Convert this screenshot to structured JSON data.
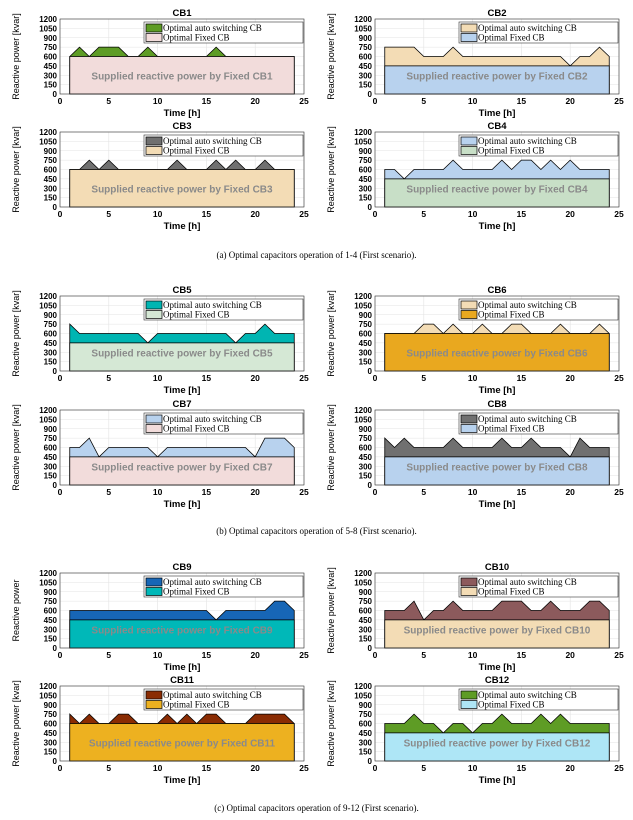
{
  "captions": [
    "(a)  Optimal capacitors operation of 1-4 (First scenario).",
    "(b)  Optimal capacitors operation of 5-8 (First scenario).",
    "(c)  Optimal capacitors operation of 9-12 (First scenario)."
  ],
  "chart_data": [
    {
      "type": "area",
      "title": "CB1",
      "xlabel": "Time [h]",
      "ylabel": "Reactive power [kvar]",
      "xlim": [
        0,
        25
      ],
      "ylim": [
        0,
        1200
      ],
      "xticks": [
        0,
        5,
        10,
        15,
        20,
        25
      ],
      "yticks": [
        0,
        150,
        300,
        450,
        600,
        750,
        900,
        1050,
        1200
      ],
      "grid": true,
      "legend_placement": "top-right",
      "legend": [
        "Optimal auto switching CB",
        "Optimal Fixed CB"
      ],
      "annotation": "Supplied reactive power by Fixed CB1",
      "x": [
        1,
        2,
        3,
        4,
        5,
        6,
        7,
        8,
        9,
        10,
        11,
        12,
        13,
        14,
        15,
        16,
        17,
        18,
        19,
        20,
        21,
        22,
        23,
        24
      ],
      "fixed": 600,
      "auto": [
        600,
        750,
        600,
        750,
        750,
        750,
        600,
        600,
        750,
        600,
        600,
        600,
        600,
        600,
        600,
        750,
        600,
        600,
        600,
        600,
        600,
        600,
        600,
        600
      ],
      "colors": {
        "auto": "#5e9c25",
        "fixed": "#f2dcdb"
      }
    },
    {
      "type": "area",
      "title": "CB2",
      "xlabel": "Time [h]",
      "ylabel": "Reactive power [kvar]",
      "xlim": [
        0,
        25
      ],
      "ylim": [
        0,
        1200
      ],
      "xticks": [
        0,
        5,
        10,
        15,
        20,
        25
      ],
      "yticks": [
        0,
        150,
        300,
        450,
        600,
        750,
        900,
        1050,
        1200
      ],
      "grid": true,
      "legend_placement": "top-right",
      "legend": [
        "Optimal auto switching CB",
        "Optimal Fixed CB"
      ],
      "annotation": "Supplied reactive power by Fixed CB2",
      "x": [
        1,
        2,
        3,
        4,
        5,
        6,
        7,
        8,
        9,
        10,
        11,
        12,
        13,
        14,
        15,
        16,
        17,
        18,
        19,
        20,
        21,
        22,
        23,
        24
      ],
      "fixed": 450,
      "auto": [
        750,
        750,
        750,
        750,
        600,
        600,
        600,
        750,
        600,
        600,
        600,
        600,
        600,
        600,
        600,
        600,
        600,
        600,
        600,
        450,
        600,
        600,
        750,
        600
      ],
      "colors": {
        "auto": "#f3dcb5",
        "fixed": "#b8d2ee"
      }
    },
    {
      "type": "area",
      "title": "CB3",
      "xlabel": "Time [h]",
      "ylabel": "Reactive power [kvar]",
      "xlim": [
        0,
        25
      ],
      "ylim": [
        0,
        1200
      ],
      "xticks": [
        0,
        5,
        10,
        15,
        20,
        25
      ],
      "yticks": [
        0,
        150,
        300,
        450,
        600,
        750,
        900,
        1050,
        1200
      ],
      "grid": true,
      "legend_placement": "top-right",
      "legend": [
        "Optimal auto switching CB",
        "Optimal Fixed CB"
      ],
      "annotation": "Supplied reactive power by Fixed CB3",
      "x": [
        1,
        2,
        3,
        4,
        5,
        6,
        7,
        8,
        9,
        10,
        11,
        12,
        13,
        14,
        15,
        16,
        17,
        18,
        19,
        20,
        21,
        22,
        23,
        24
      ],
      "fixed": 600,
      "auto": [
        600,
        600,
        750,
        600,
        750,
        600,
        600,
        600,
        600,
        600,
        600,
        750,
        600,
        600,
        600,
        750,
        600,
        750,
        600,
        600,
        750,
        600,
        600,
        600
      ],
      "colors": {
        "auto": "#707070",
        "fixed": "#f3dcb5"
      }
    },
    {
      "type": "area",
      "title": "CB4",
      "xlabel": "Time [h]",
      "ylabel": "Reactive power [kvar]",
      "xlim": [
        0,
        25
      ],
      "ylim": [
        0,
        1200
      ],
      "xticks": [
        0,
        5,
        10,
        15,
        20,
        25
      ],
      "yticks": [
        0,
        150,
        300,
        450,
        600,
        750,
        900,
        1050,
        1200
      ],
      "grid": true,
      "legend_placement": "top-right",
      "legend": [
        "Optimal auto switching CB",
        "Optimal Fixed CB"
      ],
      "annotation": "Supplied reactive power by Fixed CB4",
      "x": [
        1,
        2,
        3,
        4,
        5,
        6,
        7,
        8,
        9,
        10,
        11,
        12,
        13,
        14,
        15,
        16,
        17,
        18,
        19,
        20,
        21,
        22,
        23,
        24
      ],
      "fixed": 450,
      "auto": [
        600,
        600,
        450,
        600,
        600,
        600,
        600,
        750,
        600,
        600,
        600,
        600,
        750,
        600,
        750,
        750,
        600,
        750,
        600,
        750,
        600,
        600,
        600,
        600
      ],
      "colors": {
        "auto": "#b8d2ee",
        "fixed": "#c8dfc7"
      }
    },
    {
      "type": "area",
      "title": "CB5",
      "xlabel": "Time [h]",
      "ylabel": "Reactive power [kvar]",
      "xlim": [
        0,
        25
      ],
      "ylim": [
        0,
        1200
      ],
      "xticks": [
        0,
        5,
        10,
        15,
        20,
        25
      ],
      "yticks": [
        0,
        150,
        300,
        450,
        600,
        750,
        900,
        1050,
        1200
      ],
      "grid": true,
      "legend_placement": "top-right",
      "legend": [
        "Optimal auto switching CB",
        "Optimal Fixed CB"
      ],
      "annotation": "Supplied reactive power by Fixed CB5",
      "x": [
        1,
        2,
        3,
        4,
        5,
        6,
        7,
        8,
        9,
        10,
        11,
        12,
        13,
        14,
        15,
        16,
        17,
        18,
        19,
        20,
        21,
        22,
        23,
        24
      ],
      "fixed": 450,
      "auto": [
        750,
        600,
        600,
        600,
        600,
        600,
        600,
        600,
        450,
        600,
        600,
        600,
        600,
        600,
        600,
        600,
        600,
        450,
        600,
        600,
        750,
        600,
        600,
        600
      ],
      "colors": {
        "auto": "#00b5b2",
        "fixed": "#d5e8d5"
      }
    },
    {
      "type": "area",
      "title": "CB6",
      "xlabel": "Time [h]",
      "ylabel": "Reactive power [kvar]",
      "xlim": [
        0,
        25
      ],
      "ylim": [
        0,
        1200
      ],
      "xticks": [
        0,
        5,
        10,
        15,
        20,
        25
      ],
      "yticks": [
        0,
        150,
        300,
        450,
        600,
        750,
        900,
        1050,
        1200
      ],
      "grid": true,
      "legend_placement": "top-right",
      "legend": [
        "Optimal auto switching CB",
        "Optimal Fixed CB"
      ],
      "annotation": "Supplied reactive power by Fixed CB6",
      "x": [
        1,
        2,
        3,
        4,
        5,
        6,
        7,
        8,
        9,
        10,
        11,
        12,
        13,
        14,
        15,
        16,
        17,
        18,
        19,
        20,
        21,
        22,
        23,
        24
      ],
      "fixed": 600,
      "auto": [
        600,
        600,
        600,
        600,
        750,
        750,
        600,
        750,
        600,
        600,
        750,
        600,
        600,
        750,
        750,
        600,
        600,
        600,
        750,
        600,
        600,
        600,
        750,
        600
      ],
      "colors": {
        "auto": "#f3dcb5",
        "fixed": "#e9a81f"
      }
    },
    {
      "type": "area",
      "title": "CB7",
      "xlabel": "Time [h]",
      "ylabel": "Reactive power [kvar]",
      "xlim": [
        0,
        25
      ],
      "ylim": [
        0,
        1200
      ],
      "xticks": [
        0,
        5,
        10,
        15,
        20,
        25
      ],
      "yticks": [
        0,
        150,
        300,
        450,
        600,
        750,
        900,
        1050,
        1200
      ],
      "grid": true,
      "legend_placement": "top-right",
      "legend": [
        "Optimal auto switching CB",
        "Optimal Fixed CB"
      ],
      "annotation": "Supplied reactive power by Fixed CB7",
      "x": [
        1,
        2,
        3,
        4,
        5,
        6,
        7,
        8,
        9,
        10,
        11,
        12,
        13,
        14,
        15,
        16,
        17,
        18,
        19,
        20,
        21,
        22,
        23,
        24
      ],
      "fixed": 450,
      "auto": [
        600,
        600,
        750,
        450,
        600,
        600,
        600,
        600,
        600,
        450,
        600,
        600,
        600,
        600,
        600,
        600,
        600,
        600,
        600,
        450,
        750,
        750,
        750,
        600
      ],
      "colors": {
        "auto": "#b8d2ee",
        "fixed": "#f2dcdb"
      }
    },
    {
      "type": "area",
      "title": "CB8",
      "xlabel": "Time [h]",
      "ylabel": "Reactive power [kvar]",
      "xlim": [
        0,
        25
      ],
      "ylim": [
        0,
        1200
      ],
      "xticks": [
        0,
        5,
        10,
        15,
        20,
        25
      ],
      "yticks": [
        0,
        150,
        300,
        450,
        600,
        750,
        900,
        1050,
        1200
      ],
      "grid": true,
      "legend_placement": "top-right",
      "legend": [
        "Optimal auto switching CB",
        "Optimal Fixed CB"
      ],
      "annotation": "Supplied reactive power by Fixed CB8",
      "x": [
        1,
        2,
        3,
        4,
        5,
        6,
        7,
        8,
        9,
        10,
        11,
        12,
        13,
        14,
        15,
        16,
        17,
        18,
        19,
        20,
        21,
        22,
        23,
        24
      ],
      "fixed": 450,
      "auto": [
        750,
        600,
        750,
        600,
        600,
        600,
        600,
        750,
        600,
        600,
        600,
        600,
        750,
        600,
        600,
        750,
        600,
        600,
        600,
        450,
        750,
        600,
        600,
        600
      ],
      "colors": {
        "auto": "#707070",
        "fixed": "#b8d2ee"
      }
    },
    {
      "type": "area",
      "title": "CB9",
      "xlabel": "Time [h]",
      "ylabel": "Reactive power",
      "xlim": [
        0,
        25
      ],
      "ylim": [
        0,
        1200
      ],
      "xticks": [
        0,
        5,
        10,
        15,
        20,
        25
      ],
      "yticks": [
        0,
        150,
        300,
        450,
        600,
        750,
        900,
        1050,
        1200
      ],
      "grid": true,
      "legend_placement": "top-right",
      "legend": [
        "Optimal auto switching CB",
        "Optimal Fixed CB"
      ],
      "annotation": "Supplied reactive power by Fixed CB9",
      "x": [
        1,
        2,
        3,
        4,
        5,
        6,
        7,
        8,
        9,
        10,
        11,
        12,
        13,
        14,
        15,
        16,
        17,
        18,
        19,
        20,
        21,
        22,
        23,
        24
      ],
      "fixed": 450,
      "auto": [
        600,
        600,
        600,
        600,
        600,
        600,
        600,
        600,
        600,
        600,
        600,
        600,
        600,
        600,
        600,
        450,
        600,
        600,
        600,
        600,
        600,
        750,
        750,
        600
      ],
      "colors": {
        "auto": "#1766b6",
        "fixed": "#00b8b8"
      }
    },
    {
      "type": "area",
      "title": "CB10",
      "xlabel": "Time [h]",
      "ylabel": "Reactive power [kvar]",
      "xlim": [
        0,
        25
      ],
      "ylim": [
        0,
        1200
      ],
      "xticks": [
        0,
        5,
        10,
        15,
        20,
        25
      ],
      "yticks": [
        0,
        150,
        300,
        450,
        600,
        750,
        900,
        1050,
        1200
      ],
      "grid": true,
      "legend_placement": "top-right",
      "legend": [
        "Optimal auto switching CB",
        "Optimal Fixed CB"
      ],
      "annotation": "Supplied reactive power by Fixed CB10",
      "x": [
        1,
        2,
        3,
        4,
        5,
        6,
        7,
        8,
        9,
        10,
        11,
        12,
        13,
        14,
        15,
        16,
        17,
        18,
        19,
        20,
        21,
        22,
        23,
        24
      ],
      "fixed": 450,
      "auto": [
        600,
        600,
        600,
        750,
        450,
        600,
        600,
        750,
        600,
        600,
        600,
        600,
        750,
        750,
        750,
        600,
        600,
        750,
        600,
        600,
        600,
        750,
        750,
        600
      ],
      "colors": {
        "auto": "#8c5a5c",
        "fixed": "#f3dcb5"
      }
    },
    {
      "type": "area",
      "title": "CB11",
      "xlabel": "Time [h]",
      "ylabel": "Reactive power [kvar]",
      "xlim": [
        0,
        25
      ],
      "ylim": [
        0,
        1200
      ],
      "xticks": [
        0,
        5,
        10,
        15,
        20,
        25
      ],
      "yticks": [
        0,
        150,
        300,
        450,
        600,
        750,
        900,
        1050,
        1200
      ],
      "grid": true,
      "legend_placement": "top-right",
      "legend": [
        "Optimal auto switching CB",
        "Optimal Fixed CB"
      ],
      "annotation": "Supplied reactive power by Fixed CB11",
      "x": [
        1,
        2,
        3,
        4,
        5,
        6,
        7,
        8,
        9,
        10,
        11,
        12,
        13,
        14,
        15,
        16,
        17,
        18,
        19,
        20,
        21,
        22,
        23,
        24
      ],
      "fixed": 600,
      "auto": [
        750,
        600,
        750,
        600,
        600,
        750,
        750,
        600,
        600,
        600,
        750,
        600,
        750,
        600,
        750,
        750,
        600,
        600,
        600,
        750,
        750,
        750,
        750,
        600
      ],
      "colors": {
        "auto": "#8a2c03",
        "fixed": "#edb120"
      }
    },
    {
      "type": "area",
      "title": "CB12",
      "xlabel": "Time [h]",
      "ylabel": "Reactive power [kvar]",
      "xlim": [
        0,
        25
      ],
      "ylim": [
        0,
        1200
      ],
      "xticks": [
        0,
        5,
        10,
        15,
        20,
        25
      ],
      "yticks": [
        0,
        150,
        300,
        450,
        600,
        750,
        900,
        1050,
        1200
      ],
      "grid": true,
      "legend_placement": "top-right",
      "legend": [
        "Optimal auto switching CB",
        "Optimal Fixed CB"
      ],
      "annotation": "Supplied reactive power by Fixed CB12",
      "x": [
        1,
        2,
        3,
        4,
        5,
        6,
        7,
        8,
        9,
        10,
        11,
        12,
        13,
        14,
        15,
        16,
        17,
        18,
        19,
        20,
        21,
        22,
        23,
        24
      ],
      "fixed": 450,
      "auto": [
        600,
        600,
        600,
        750,
        600,
        600,
        450,
        600,
        600,
        450,
        600,
        600,
        750,
        600,
        600,
        600,
        750,
        600,
        750,
        600,
        600,
        600,
        600,
        600
      ],
      "colors": {
        "auto": "#5e9c25",
        "fixed": "#aee6f6"
      }
    }
  ]
}
